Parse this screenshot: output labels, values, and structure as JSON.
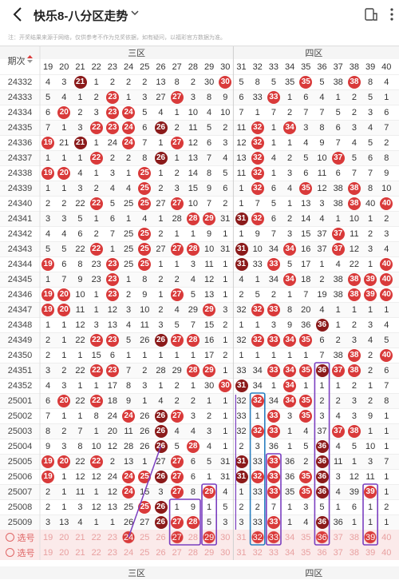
{
  "header": {
    "title": "快乐8-八分区走势",
    "back_icon": "chevron-left-icon",
    "dropdown_icon": "chevron-down-icon",
    "share_icon": "phone-share-icon",
    "menu_icon": "more-icon"
  },
  "notice": "注：开奖结果来源于网络，仅供参考不作为兑奖依据，如有疑问，以福彩官方数据为准。",
  "table": {
    "period_header": "期次",
    "zones": [
      "三区",
      "四区"
    ],
    "columns": [
      "19",
      "20",
      "21",
      "22",
      "23",
      "24",
      "25",
      "26",
      "27",
      "28",
      "29",
      "30",
      "31",
      "32",
      "33",
      "34",
      "35",
      "36",
      "37",
      "38",
      "39",
      "40"
    ],
    "rows": [
      {
        "period": "24332",
        "cells": [
          "4",
          "3",
          "21",
          "1",
          "2",
          "2",
          "2",
          "13",
          "8",
          "2",
          "30",
          "8",
          "5",
          "8",
          "5",
          "35",
          "3",
          "5",
          "38",
          "1",
          "8",
          "4"
        ]
      },
      {
        "period": "24333",
        "cells": [
          "5",
          "4",
          "1",
          "2",
          "23",
          "1",
          "3",
          "27",
          "9",
          "3",
          "8",
          "9",
          "6",
          "33",
          "6",
          "1",
          "6",
          "4",
          "1",
          "2",
          "5",
          "1"
        ]
      },
      {
        "period": "24334",
        "cells": [
          "6",
          "20",
          "2",
          "3",
          "23",
          "24",
          "5",
          "4",
          "1",
          "10",
          "4",
          "10",
          "7",
          "1",
          "7",
          "2",
          "7",
          "7",
          "5",
          "2",
          "3",
          "6"
        ]
      },
      {
        "period": "24335",
        "cells": [
          "7",
          "1",
          "3",
          "22",
          "23",
          "24",
          "6",
          "26",
          "2",
          "11",
          "5",
          "2",
          "11",
          "32",
          "1",
          "34",
          "3",
          "8",
          "6",
          "3",
          "4",
          "7"
        ]
      },
      {
        "period": "24336",
        "cells": [
          "19",
          "21",
          "4",
          "1",
          "24",
          "1",
          "7",
          "1",
          "27",
          "12",
          "6",
          "3",
          "12",
          "32",
          "1",
          "1",
          "4",
          "9",
          "7",
          "4",
          "5",
          "2"
        ]
      },
      {
        "period": "24337",
        "cells": [
          "1",
          "1",
          "1",
          "22",
          "2",
          "2",
          "8",
          "26",
          "1",
          "13",
          "7",
          "4",
          "13",
          "32",
          "4",
          "2",
          "5",
          "10",
          "37",
          "5",
          "6",
          "8"
        ]
      },
      {
        "period": "24338",
        "cells": [
          "19",
          "20",
          "4",
          "1",
          "3",
          "1",
          "25",
          "1",
          "2",
          "14",
          "8",
          "5",
          "11",
          "32",
          "1",
          "3",
          "6",
          "11",
          "6",
          "7",
          "7",
          "9"
        ]
      },
      {
        "period": "24339",
        "cells": [
          "1",
          "1",
          "3",
          "2",
          "4",
          "4",
          "25",
          "2",
          "3",
          "15",
          "9",
          "6",
          "1",
          "32",
          "6",
          "4",
          "35",
          "12",
          "38",
          "8",
          "8",
          "10"
        ]
      },
      {
        "period": "24340",
        "cells": [
          "2",
          "2",
          "22",
          "5",
          "5",
          "25",
          "3",
          "27",
          "16",
          "10",
          "7",
          "2",
          "1",
          "7",
          "5",
          "1",
          "13",
          "3",
          "38",
          "9",
          "40",
          "1"
        ]
      },
      {
        "period": "24341",
        "cells": [
          "3",
          "3",
          "5",
          "1",
          "6",
          "1",
          "4",
          "1",
          "28",
          "29",
          "8",
          "31",
          "32",
          "8",
          "6",
          "2",
          "14",
          "4",
          "1",
          "10",
          "1",
          "2"
        ]
      },
      {
        "period": "24342",
        "cells": [
          "4",
          "4",
          "6",
          "2",
          "7",
          "25",
          "5",
          "2",
          "1",
          "1",
          "9",
          "1",
          "1",
          "9",
          "7",
          "3",
          "15",
          "37",
          "2",
          "11",
          "2",
          "3"
        ]
      },
      {
        "period": "24343",
        "cells": [
          "5",
          "5",
          "22",
          "8",
          "1",
          "25",
          "6",
          "27",
          "28",
          "2",
          "10",
          "31",
          "2",
          "10",
          "34",
          "4",
          "16",
          "37",
          "3",
          "12",
          "3",
          "4"
        ]
      },
      {
        "period": "24344",
        "cells": [
          "19",
          "6",
          "8",
          "23",
          "9",
          "25",
          "7",
          "1",
          "1",
          "3",
          "11",
          "1",
          "31",
          "33",
          "1",
          "5",
          "17",
          "1",
          "4",
          "22",
          "1",
          "40"
        ]
      },
      {
        "period": "24345",
        "cells": [
          "1",
          "7",
          "9",
          "23",
          "10",
          "1",
          "8",
          "2",
          "2",
          "4",
          "12",
          "1",
          "4",
          "1",
          "34",
          "6",
          "18",
          "2",
          "38",
          "39",
          "40",
          "1"
        ]
      },
      {
        "period": "24346",
        "cells": [
          "19",
          "20",
          "10",
          "1",
          "23",
          "2",
          "9",
          "1",
          "27",
          "5",
          "13",
          "1",
          "2",
          "5",
          "2",
          "1",
          "7",
          "19",
          "38",
          "39",
          "40",
          "1"
        ]
      },
      {
        "period": "24347",
        "cells": [
          "19",
          "20",
          "11",
          "1",
          "12",
          "3",
          "10",
          "2",
          "4",
          "29",
          "14",
          "3",
          "32",
          "33",
          "2",
          "8",
          "20",
          "4",
          "1",
          "1",
          "1",
          "1"
        ]
      },
      {
        "period": "24348",
        "cells": [
          "1",
          "1",
          "12",
          "3",
          "13",
          "4",
          "11",
          "3",
          "5",
          "7",
          "15",
          "2",
          "1",
          "1",
          "3",
          "9",
          "36",
          "5",
          "1",
          "2",
          "3",
          "4"
        ]
      },
      {
        "period": "24349",
        "cells": [
          "2",
          "1",
          "22",
          "23",
          "14",
          "5",
          "26",
          "27",
          "28",
          "8",
          "16",
          "1",
          "32",
          "33",
          "34",
          "35",
          "1",
          "6",
          "2",
          "3",
          "4",
          "5"
        ]
      },
      {
        "period": "24350",
        "cells": [
          "2",
          "1",
          "1",
          "15",
          "6",
          "1",
          "1",
          "1",
          "1",
          "1",
          "17",
          "2",
          "1",
          "1",
          "1",
          "1",
          "1",
          "7",
          "38",
          "1",
          "2",
          "40"
        ]
      },
      {
        "period": "24351",
        "cells": [
          "3",
          "2",
          "22",
          "23",
          "16",
          "7",
          "2",
          "28",
          "29",
          "2",
          "18",
          "1",
          "33",
          "34",
          "35",
          "36",
          "37",
          "38",
          "4",
          "1",
          "2",
          "6"
        ]
      },
      {
        "period": "24352",
        "cells": [
          "4",
          "3",
          "1",
          "1",
          "17",
          "8",
          "3",
          "1",
          "2",
          "1",
          "30",
          "31",
          "1",
          "34",
          "1",
          "1",
          "1",
          "1",
          "1",
          "2",
          "1",
          "7"
        ]
      },
      {
        "period": "25001",
        "cells": [
          "6",
          "20",
          "22",
          "1",
          "18",
          "9",
          "1",
          "4",
          "2",
          "2",
          "1",
          "1",
          "32",
          "1",
          "34",
          "35",
          "2",
          "2",
          "2",
          "3",
          "2",
          "8"
        ]
      },
      {
        "period": "25002",
        "cells": [
          "7",
          "1",
          "1",
          "8",
          "24",
          "10",
          "26",
          "27",
          "3",
          "3",
          "2",
          "1",
          "33",
          "1",
          "35",
          "3",
          "1",
          "3",
          "4",
          "3",
          "9",
          "1"
        ]
      },
      {
        "period": "25003",
        "cells": [
          "8",
          "2",
          "7",
          "1",
          "20",
          "11",
          "26",
          "1",
          "4",
          "4",
          "3",
          "1",
          "32",
          "33",
          "4",
          "1",
          "4",
          "37",
          "38",
          "9",
          "1",
          "1"
        ]
      },
      {
        "period": "25004",
        "cells": [
          "9",
          "3",
          "8",
          "10",
          "12",
          "28",
          "26",
          "1",
          "5",
          "5",
          "4",
          "1",
          "2",
          "3",
          "36",
          "1",
          "5",
          "4",
          "4",
          "5",
          "10",
          "1"
        ]
      },
      {
        "period": "25005",
        "cells": [
          "19",
          "20",
          "22",
          "11",
          "2",
          "13",
          "1",
          "27",
          "6",
          "6",
          "5",
          "31",
          "2",
          "33",
          "1",
          "36",
          "2",
          "2",
          "11",
          "1",
          "3",
          "7"
        ]
      },
      {
        "period": "25006",
        "cells": [
          "19",
          "1",
          "12",
          "12",
          "24",
          "25",
          "26",
          "27",
          "7",
          "6",
          "1",
          "31",
          "32",
          "33",
          "35",
          "36",
          "3",
          "1",
          "3",
          "12",
          "11",
          "1"
        ]
      },
      {
        "period": "25007",
        "cells": [
          "2",
          "1",
          "11",
          "1",
          "12",
          "24",
          "15",
          "3",
          "27",
          "8",
          "29",
          "4",
          "1",
          "33",
          "6",
          "35",
          "36",
          "2",
          "4",
          "39",
          "1",
          "1"
        ]
      },
      {
        "period": "25008",
        "cells": [
          "2",
          "1",
          "3",
          "12",
          "13",
          "25",
          "26",
          "6",
          "1",
          "9",
          "1",
          "5",
          "2",
          "2",
          "7",
          "1",
          "3",
          "5",
          "1",
          "6",
          "1",
          "2"
        ]
      },
      {
        "period": "25009",
        "cells": [
          "3",
          "13",
          "4",
          "1",
          "1",
          "26",
          "27",
          "28",
          "2",
          "6",
          "5",
          "3",
          "3",
          "33",
          "3",
          "1",
          "4",
          "5",
          "36",
          "1",
          "1",
          "1"
        ]
      }
    ],
    "balls": {
      "24332": [
        "21",
        "30",
        "35",
        "38"
      ],
      "24333": [
        "23",
        "27",
        "33"
      ],
      "24334": [
        "20",
        "23",
        "24"
      ],
      "24335": [
        "22",
        "23",
        "24",
        "26",
        "32",
        "34"
      ],
      "24336": [
        "19",
        "21",
        "24",
        "27",
        "32"
      ],
      "24337": [
        "22",
        "26",
        "32",
        "37"
      ],
      "24338": [
        "19",
        "20",
        "25",
        "32"
      ],
      "24339": [
        "25",
        "32",
        "35",
        "38"
      ],
      "24340": [
        "22",
        "25",
        "27",
        "38",
        "40"
      ],
      "24341": [
        "28",
        "29",
        "31",
        "32"
      ],
      "24342": [
        "25",
        "37"
      ],
      "24343": [
        "22",
        "25",
        "27",
        "28",
        "31",
        "34",
        "37"
      ],
      "24344": [
        "19",
        "23",
        "25",
        "31",
        "33",
        "40"
      ],
      "24345": [
        "23",
        "34",
        "38",
        "39",
        "40"
      ],
      "24346": [
        "19",
        "20",
        "23",
        "27",
        "38",
        "39",
        "40"
      ],
      "24347": [
        "19",
        "20",
        "29",
        "32",
        "33"
      ],
      "24348": [
        "36"
      ],
      "24349": [
        "22",
        "23",
        "26",
        "27",
        "28",
        "32",
        "33",
        "34",
        "35"
      ],
      "24350": [
        "38",
        "40"
      ],
      "24351": [
        "22",
        "23",
        "28",
        "29",
        "33",
        "34",
        "35",
        "36",
        "37",
        "38"
      ],
      "24352": [
        "30",
        "31",
        "34"
      ],
      "25001": [
        "20",
        "22",
        "32",
        "34",
        "35"
      ],
      "25002": [
        "24",
        "26",
        "27",
        "33",
        "35"
      ],
      "25003": [
        "26",
        "32",
        "33",
        "37",
        "38"
      ],
      "25004": [
        "28",
        "26",
        "36"
      ],
      "25005": [
        "19",
        "20",
        "22",
        "27",
        "31",
        "33",
        "36"
      ],
      "25006": [
        "19",
        "24",
        "25",
        "26",
        "27",
        "31",
        "32",
        "33",
        "35",
        "36"
      ],
      "25007": [
        "24",
        "27",
        "29",
        "33",
        "35",
        "36",
        "39"
      ],
      "25008": [
        "25",
        "26"
      ],
      "25009": [
        "26",
        "27",
        "28",
        "33",
        "36"
      ]
    },
    "select_rows": [
      {
        "label": "选号",
        "cells": [
          "19",
          "20",
          "21",
          "22",
          "23",
          "24",
          "25",
          "26",
          "27",
          "28",
          "29",
          "30",
          "31",
          "32",
          "33",
          "34",
          "35",
          "36",
          "37",
          "38",
          "39",
          "40"
        ],
        "picked": [
          "24",
          "27",
          "29",
          "32",
          "33",
          "36",
          "39"
        ]
      },
      {
        "label": "选号",
        "cells": [
          "19",
          "20",
          "21",
          "22",
          "23",
          "24",
          "25",
          "26",
          "27",
          "28",
          "29",
          "30",
          "31",
          "32",
          "33",
          "34",
          "35",
          "36",
          "37",
          "38",
          "39",
          "40"
        ],
        "picked": []
      }
    ],
    "footer_zones": [
      "三区",
      "四区"
    ]
  },
  "colors": {
    "ball_red": "#d93a3a",
    "ball_dark": "#8b1a1a",
    "highlight_row": "#fbeaea",
    "connector_purple": "#7b3fc0",
    "connector_blue": "#2a7fc0",
    "zone_bar_bg": "#f5f5f5"
  }
}
